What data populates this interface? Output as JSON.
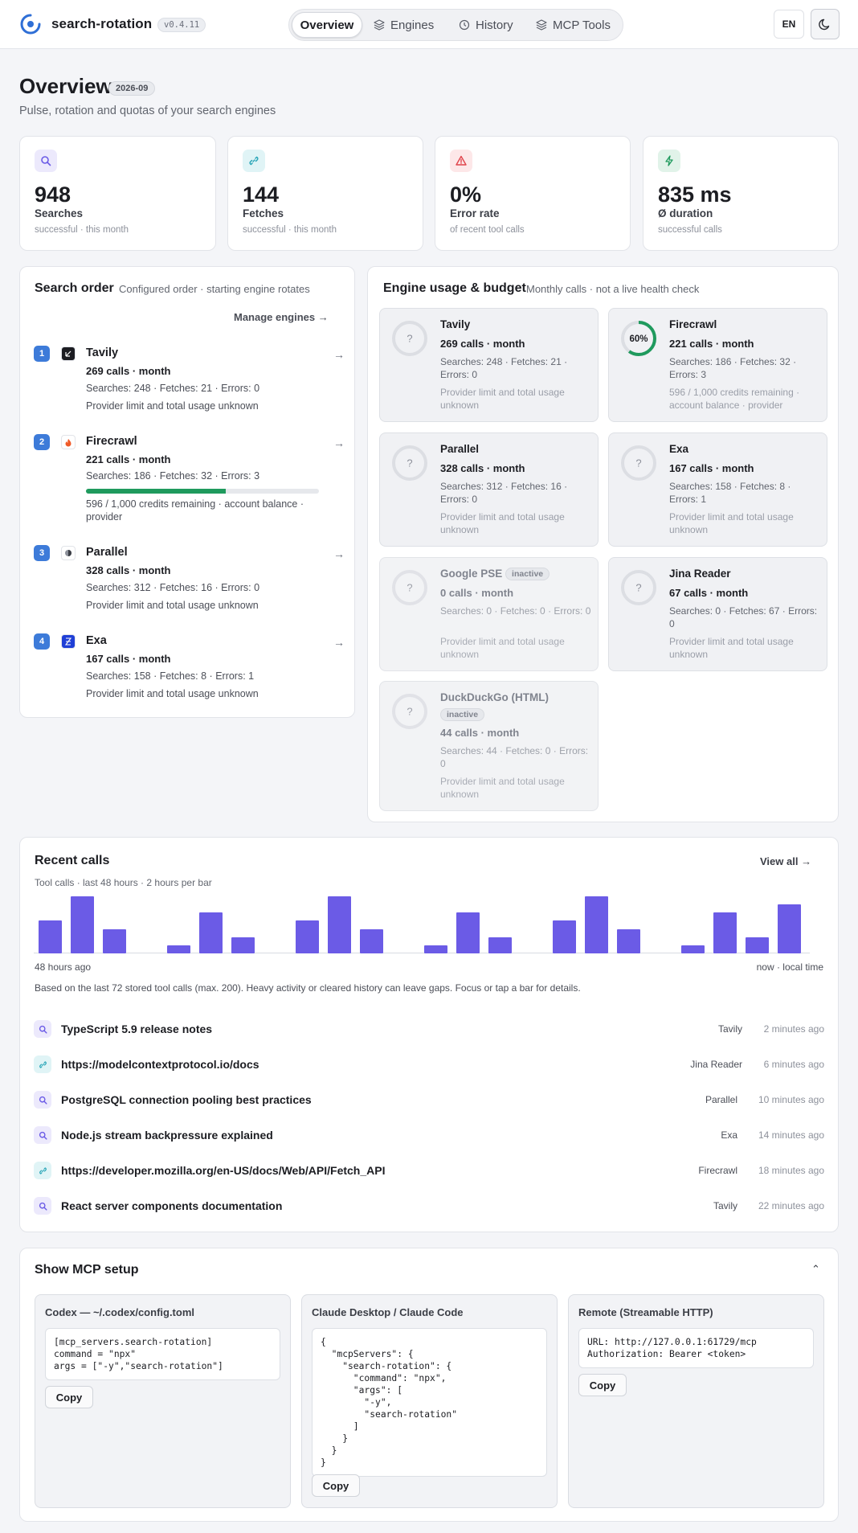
{
  "app": {
    "name": "search-rotation",
    "version": "v0.4.11"
  },
  "nav": {
    "tabs": [
      {
        "label": "Overview",
        "icon": "home-icon",
        "active": true
      },
      {
        "label": "Engines",
        "icon": "layers-icon"
      },
      {
        "label": "History",
        "icon": "clock-icon"
      },
      {
        "label": "MCP Tools",
        "icon": "layers-icon"
      }
    ],
    "lang": "EN",
    "theme_icon": "moon-icon"
  },
  "page": {
    "title": "Overview",
    "period": "2026-09",
    "subtitle": "Pulse, rotation and quotas of your search engines"
  },
  "stats": [
    {
      "value": "948",
      "label": "Searches",
      "sub": "successful · this month",
      "icon": "search-icon",
      "color": "#6b5be6"
    },
    {
      "value": "144",
      "label": "Fetches",
      "sub": "successful · this month",
      "icon": "link-icon",
      "color": "#2aa6b8"
    },
    {
      "value": "0%",
      "label": "Error rate",
      "sub": "of recent tool calls",
      "icon": "warning-icon",
      "color": "#e0444b"
    },
    {
      "value": "835 ms",
      "label": "Ø duration",
      "sub": "successful calls",
      "icon": "bolt-icon",
      "color": "#1f9a5d"
    }
  ],
  "search_order": {
    "title": "Search order",
    "subtitle": "Configured order · starting engine rotates",
    "manage_label": "Manage engines",
    "items": [
      {
        "num": "1",
        "name": "Tavily",
        "calls": "269 calls · month",
        "stats": "Searches: 248 · Fetches: 21 · Errors: 0",
        "note": "Provider limit and total usage unknown",
        "icon": "tavily-icon"
      },
      {
        "num": "2",
        "name": "Firecrawl",
        "calls": "221 calls · month",
        "stats": "Searches: 186 · Fetches: 32 · Errors: 3",
        "note": "596 / 1,000 credits remaining · account balance · provider",
        "icon": "flame-icon",
        "credits_fraction": 0.6
      },
      {
        "num": "3",
        "name": "Parallel",
        "calls": "328 calls · month",
        "stats": "Searches: 312 · Fetches: 16 · Errors: 0",
        "note": "Provider limit and total usage unknown",
        "icon": "parallel-icon"
      },
      {
        "num": "4",
        "name": "Exa",
        "calls": "167 calls · month",
        "stats": "Searches: 158 · Fetches: 8 · Errors: 1",
        "note": "Provider limit and total usage unknown",
        "icon": "exa-icon"
      }
    ]
  },
  "engine_usage": {
    "title": "Engine usage & budget",
    "subtitle": "Monthly calls · not a live health check",
    "engines": [
      {
        "name": "Tavily",
        "calls": "269 calls · month",
        "stats": "Searches: 248 · Fetches: 21 · Errors: 0",
        "note": "Provider limit and total usage unknown",
        "ring": "?"
      },
      {
        "name": "Firecrawl",
        "calls": "221 calls · month",
        "stats": "Searches: 186 · Fetches: 32 · Errors: 3",
        "note": "596 / 1,000 credits remaining · account balance · provider",
        "ring": "60%",
        "ring_fraction": 0.6
      },
      {
        "name": "Parallel",
        "calls": "328 calls · month",
        "stats": "Searches: 312 · Fetches: 16 · Errors: 0",
        "note": "Provider limit and total usage unknown",
        "ring": "?"
      },
      {
        "name": "Exa",
        "calls": "167 calls · month",
        "stats": "Searches: 158 · Fetches: 8 · Errors: 1",
        "note": "Provider limit and total usage unknown",
        "ring": "?"
      },
      {
        "name": "Google PSE",
        "badge": "inactive",
        "calls": "0 calls · month",
        "stats": "Searches: 0 · Fetches: 0 · Errors: 0",
        "note": "Provider limit and total usage unknown",
        "ring": "?"
      },
      {
        "name": "Jina Reader",
        "calls": "67 calls · month",
        "stats": "Searches: 0 · Fetches: 67 · Errors: 0",
        "note": "Provider limit and total usage unknown",
        "ring": "?"
      },
      {
        "name": "DuckDuckGo (HTML)",
        "badge": "inactive",
        "calls": "44 calls · month",
        "stats": "Searches: 44 · Fetches: 0 · Errors: 0",
        "note": "Provider limit and total usage unknown",
        "ring": "?"
      }
    ]
  },
  "recent": {
    "title": "Recent calls",
    "view_all": "View all",
    "chart_caption": "Tool calls · last 48 hours · 2 hours per bar",
    "axis_left": "48 hours ago",
    "axis_right": "now · local time",
    "footnote": "Based on the last 72 stored tool calls (max. 200). Heavy activity or cleared history can leave gaps. Focus or tap a bar for details.",
    "calls": [
      {
        "type": "search",
        "title": "TypeScript 5.9 release notes",
        "engine": "Tavily",
        "time": "2 minutes ago"
      },
      {
        "type": "fetch",
        "title": "https://modelcontextprotocol.io/docs",
        "engine": "Jina Reader",
        "time": "6 minutes ago"
      },
      {
        "type": "search",
        "title": "PostgreSQL connection pooling best practices",
        "engine": "Parallel",
        "time": "10 minutes ago"
      },
      {
        "type": "search",
        "title": "Node.js stream backpressure explained",
        "engine": "Exa",
        "time": "14 minutes ago"
      },
      {
        "type": "fetch",
        "title": "https://developer.mozilla.org/en-US/docs/Web/API/Fetch_API",
        "engine": "Firecrawl",
        "time": "18 minutes ago"
      },
      {
        "type": "search",
        "title": "React server components documentation",
        "engine": "Tavily",
        "time": "22 minutes ago"
      }
    ]
  },
  "chart_data": {
    "type": "bar",
    "series": [
      {
        "values": [
          4,
          7,
          3,
          0,
          1,
          5,
          2,
          0,
          4,
          7,
          3,
          0,
          1,
          5,
          2,
          0,
          4,
          7,
          3,
          0,
          1,
          5,
          2,
          6
        ]
      }
    ],
    "ylim": [
      0,
      7
    ]
  },
  "mcp": {
    "title": "Show MCP setup",
    "copy_label": "Copy",
    "blocks": [
      {
        "title": "Codex — ~/.codex/config.toml",
        "code": "[mcp_servers.search-rotation]\ncommand = \"npx\"\nargs = [\"-y\",\"search-rotation\"]"
      },
      {
        "title": "Claude Desktop / Claude Code",
        "code": "{\n  \"mcpServers\": {\n    \"search-rotation\": {\n      \"command\": \"npx\",\n      \"args\": [\n        \"-y\",\n        \"search-rotation\"\n      ]\n    }\n  }\n}"
      },
      {
        "title": "Remote (Streamable HTTP)",
        "code": "URL: http://127.0.0.1:61729/mcp\nAuthorization: Bearer <token>"
      }
    ]
  },
  "colors": {
    "accent": "#6b5be6",
    "order_num": "#3d7bd9",
    "ok": "#1f9a5d"
  }
}
